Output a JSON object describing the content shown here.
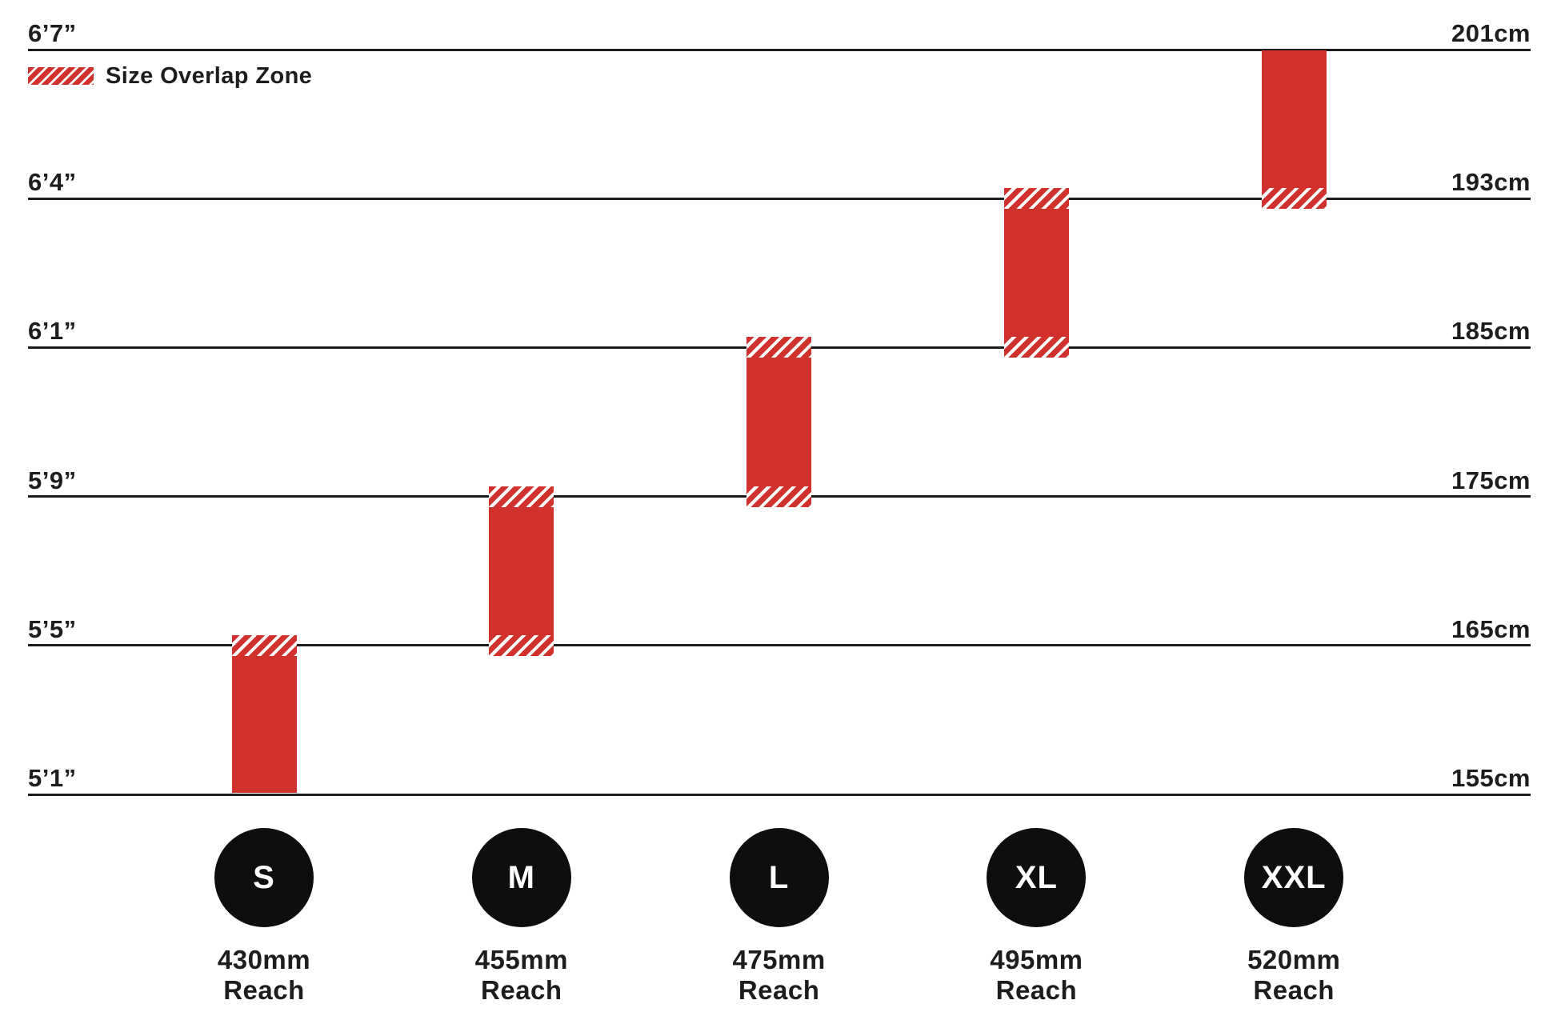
{
  "colors": {
    "red": "#d0312d",
    "line": "#1c1c1c",
    "text": "#1d1d1d",
    "circle": "#0e0e0e",
    "background": "#ffffff"
  },
  "legend": {
    "label": "Size Overlap Zone",
    "swatch_icon": "red-diagonal-stripes"
  },
  "chart_data": {
    "type": "bar",
    "subtype": "floating-range-columns",
    "title": "",
    "legend_label": "Size Overlap Zone",
    "grid_on": true,
    "y_axis": {
      "left_unit": "feet-inches",
      "right_unit": "cm",
      "range_cm": [
        155,
        201
      ],
      "gridlines": [
        {
          "cm": 201,
          "left_label": "6’7”",
          "right_label": "201cm"
        },
        {
          "cm": 193,
          "left_label": "6’4”",
          "right_label": "193cm"
        },
        {
          "cm": 185,
          "left_label": "6’1”",
          "right_label": "185cm"
        },
        {
          "cm": 175,
          "left_label": "5’9”",
          "right_label": "175cm"
        },
        {
          "cm": 165,
          "left_label": "5’5”",
          "right_label": "165cm"
        },
        {
          "cm": 155,
          "left_label": "5’1”",
          "right_label": "155cm"
        }
      ]
    },
    "series": [
      {
        "size": "S",
        "reach": "430mm Reach",
        "height_min_cm": 155,
        "height_max_cm": 165,
        "overlap_zone_top": true,
        "overlap_zone_bottom": false
      },
      {
        "size": "M",
        "reach": "455mm Reach",
        "height_min_cm": 165,
        "height_max_cm": 175,
        "overlap_zone_top": true,
        "overlap_zone_bottom": true
      },
      {
        "size": "L",
        "reach": "475mm Reach",
        "height_min_cm": 175,
        "height_max_cm": 185,
        "overlap_zone_top": true,
        "overlap_zone_bottom": true
      },
      {
        "size": "XL",
        "reach": "495mm Reach",
        "height_min_cm": 185,
        "height_max_cm": 193,
        "overlap_zone_top": true,
        "overlap_zone_bottom": true
      },
      {
        "size": "XXL",
        "reach": "520mm Reach",
        "height_min_cm": 193,
        "height_max_cm": 201,
        "overlap_zone_top": false,
        "overlap_zone_bottom": true
      }
    ]
  },
  "sizes": [
    {
      "label": "S",
      "reach_value": "430mm",
      "reach_word": "Reach"
    },
    {
      "label": "M",
      "reach_value": "455mm",
      "reach_word": "Reach"
    },
    {
      "label": "L",
      "reach_value": "475mm",
      "reach_word": "Reach"
    },
    {
      "label": "XL",
      "reach_value": "495mm",
      "reach_word": "Reach"
    },
    {
      "label": "XXL",
      "reach_value": "520mm",
      "reach_word": "Reach"
    }
  ]
}
